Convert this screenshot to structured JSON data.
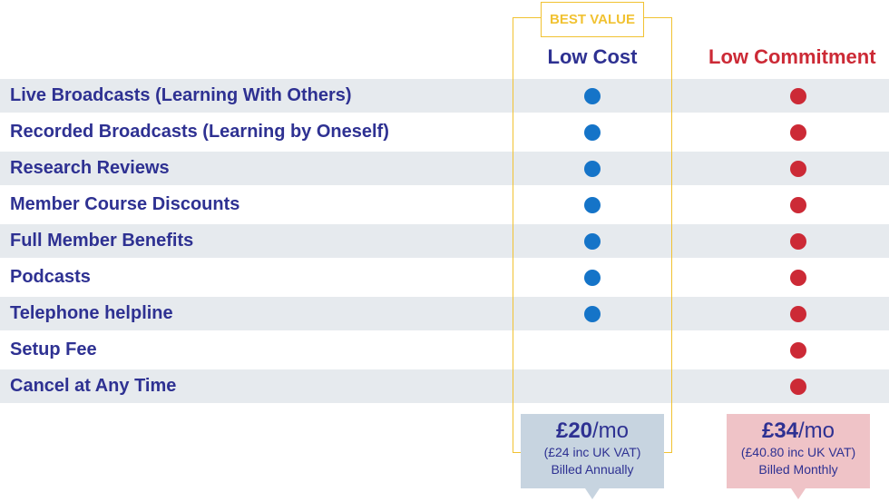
{
  "columns": {
    "badge": "BEST VALUE",
    "low_cost": "Low Cost",
    "low_commitment": "Low Commitment"
  },
  "features": [
    {
      "label": "Live Broadcasts  (Learning With Others)",
      "low_cost": true,
      "low_commitment": true
    },
    {
      "label": "Recorded Broadcasts  (Learning by Oneself)",
      "low_cost": true,
      "low_commitment": true
    },
    {
      "label": "Research Reviews",
      "low_cost": true,
      "low_commitment": true
    },
    {
      "label": "Member Course Discounts",
      "low_cost": true,
      "low_commitment": true
    },
    {
      "label": "Full Member Benefits",
      "low_cost": true,
      "low_commitment": true
    },
    {
      "label": "Podcasts",
      "low_cost": true,
      "low_commitment": true
    },
    {
      "label": "Telephone helpline",
      "low_cost": true,
      "low_commitment": true
    },
    {
      "label": "Setup Fee",
      "low_cost": false,
      "low_commitment": true
    },
    {
      "label": "Cancel at Any Time",
      "low_cost": false,
      "low_commitment": true
    }
  ],
  "pricing": {
    "annual": {
      "amount": "£20",
      "period": "/mo",
      "vat": "(£24 inc UK VAT)",
      "billing": "Billed Annually"
    },
    "monthly": {
      "amount": "£34",
      "period": "/mo",
      "vat": "(£40.80 inc UK VAT)",
      "billing": "Billed Monthly"
    }
  },
  "colors": {
    "heading": "#2e3192",
    "low_cost_dot": "#1574c8",
    "low_commitment_dot": "#cc2a36",
    "best_value": "#f1c232"
  }
}
